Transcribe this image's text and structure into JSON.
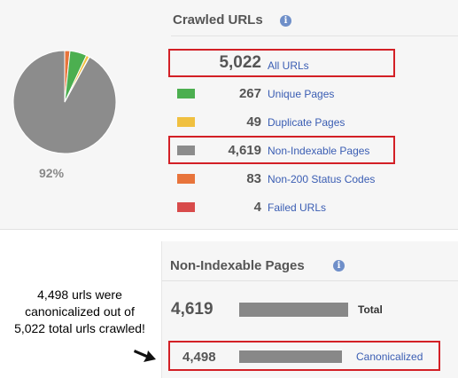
{
  "crawled_urls": {
    "title": "Crawled URLs",
    "info_icon": "info-icon",
    "pie_percent_label": "92%",
    "pie_segments": [
      {
        "name": "Non-Indexable Pages",
        "value": 4619,
        "color": "#8c8c8c"
      },
      {
        "name": "Non-200 Status Codes",
        "value": 83,
        "color": "#e8743b"
      },
      {
        "name": "Unique Pages",
        "value": 267,
        "color": "#4caf50"
      },
      {
        "name": "Duplicate Pages",
        "value": 49,
        "color": "#f0c040"
      },
      {
        "name": "Failed URLs",
        "value": 4,
        "color": "#d84b4b"
      }
    ],
    "rows": [
      {
        "count": "5,022",
        "label": "All URLs",
        "color": null
      },
      {
        "count": "267",
        "label": "Unique Pages",
        "color": "#4caf50"
      },
      {
        "count": "49",
        "label": "Duplicate Pages",
        "color": "#f0c040"
      },
      {
        "count": "4,619",
        "label": "Non-Indexable Pages",
        "color": "#8c8c8c"
      },
      {
        "count": "83",
        "label": "Non-200 Status Codes",
        "color": "#e8743b"
      },
      {
        "count": "4",
        "label": "Failed URLs",
        "color": "#d84b4b"
      }
    ]
  },
  "non_indexable": {
    "title": "Non-Indexable Pages",
    "info_icon": "info-icon",
    "rows": [
      {
        "count": "4,619",
        "label": "Total",
        "fraction": 1.0
      },
      {
        "count": "4,498",
        "label": "Canonicalized",
        "fraction": 0.974
      }
    ]
  },
  "annotation": {
    "lines": [
      "4,498 urls were",
      "canonicalized out of",
      "5,022 total urls crawled!"
    ]
  },
  "colors": {
    "highlight": "#d32026",
    "link": "#3a5db3",
    "bar": "#888888"
  }
}
